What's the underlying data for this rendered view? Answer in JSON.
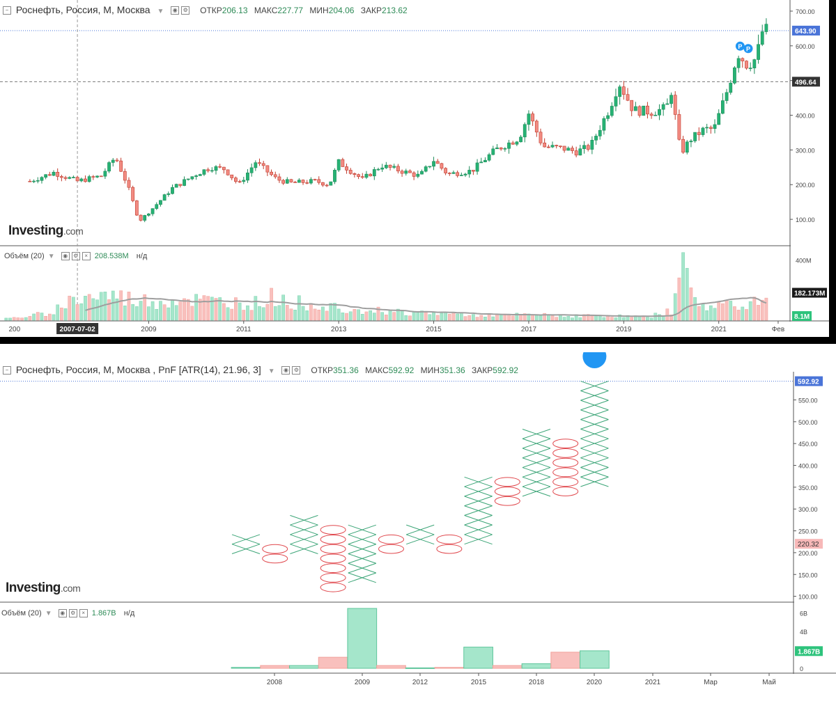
{
  "panel1": {
    "title": "Роснефть, Россия, М, Москва",
    "ohlc": {
      "open_label": "ОТКР",
      "open": "206.13",
      "high_label": "МАКС",
      "high": "227.77",
      "low_label": "МИН",
      "low": "204.06",
      "close_label": "ЗАКР",
      "close": "213.62"
    },
    "volume_label": "Объём (20)",
    "volume_value": "208.538M",
    "volume_na": "н/д",
    "crosshair_date": "2007-07-02",
    "axis_partial_left": "200",
    "price_axis": [
      "700.00",
      "600.00",
      "500.00",
      "400.00",
      "300.00",
      "200.00",
      "100.00"
    ],
    "price_ticks": [
      700,
      600,
      500,
      400,
      300,
      200,
      100
    ],
    "current_price_label": "643.90",
    "crosshair_price_label": "496.64",
    "volume_axis_label": "400M",
    "volume_ma_label": "182.173M",
    "volume_current_label": "8.1M",
    "x_axis": [
      "2009",
      "2011",
      "2013",
      "2015",
      "2017",
      "2019",
      "2021",
      "Фев"
    ],
    "x_axis_years": [
      2009,
      2011,
      2013,
      2015,
      2017,
      2019,
      2021,
      2022.25
    ],
    "marker": "P",
    "logo": "Investing",
    "logo_suffix": ".com"
  },
  "panel2": {
    "title": "Роснефть, Россия, М, Москва , PnF [ATR(14), 21.96, 3]",
    "ohlc": {
      "open_label": "ОТКР",
      "open": "351.36",
      "high_label": "МАКС",
      "high": "592.92",
      "low_label": "МИН",
      "low": "351.36",
      "close_label": "ЗАКР",
      "close": "592.92"
    },
    "volume_label": "Объём (20)",
    "volume_value": "1.867B",
    "volume_na": "н/д",
    "price_axis": [
      "550.00",
      "500.00",
      "450.00",
      "400.00",
      "350.00",
      "300.00",
      "250.00",
      "200.00",
      "150.00",
      "100.00"
    ],
    "price_ticks": [
      550,
      500,
      450,
      400,
      350,
      300,
      250,
      200,
      150,
      100
    ],
    "current_price_label": "592.92",
    "marker_price_label": "220.32",
    "volume_axis": [
      "6B",
      "4B",
      "2B",
      "0"
    ],
    "volume_ticks": [
      6,
      4,
      2,
      0
    ],
    "volume_current_label": "1.867B",
    "x_axis": [
      "2008",
      "2009",
      "2012",
      "2015",
      "2018",
      "2020",
      "2021",
      "Мар",
      "Май"
    ],
    "logo": "Investing",
    "logo_suffix": ".com"
  },
  "colors": {
    "up": "#26a69a",
    "down": "#ef5350",
    "up_vol": "#a5e6cb",
    "down_vol": "#f9c0bd",
    "label_blue": "#4a74d8",
    "label_dark": "#333333",
    "label_green": "#2ec37c",
    "label_red": "#f7b8b8",
    "ma": "#9e9e9e"
  },
  "chart_data": [
    {
      "type": "candlestick",
      "title": "Роснефть, Россия, М, Москва",
      "interval": "monthly",
      "ylim": [
        30,
        720
      ],
      "x_range": [
        2005.9,
        2022.5
      ],
      "price_points": [
        [
          2006.5,
          210
        ],
        [
          2007.0,
          235
        ],
        [
          2007.5,
          210
        ],
        [
          2008.0,
          225
        ],
        [
          2008.3,
          280
        ],
        [
          2008.55,
          200
        ],
        [
          2008.8,
          95
        ],
        [
          2009.0,
          120
        ],
        [
          2009.5,
          190
        ],
        [
          2010.0,
          230
        ],
        [
          2010.3,
          250
        ],
        [
          2010.6,
          245
        ],
        [
          2010.9,
          200
        ],
        [
          2011.25,
          265
        ],
        [
          2011.7,
          215
        ],
        [
          2012.0,
          205
        ],
        [
          2012.5,
          210
        ],
        [
          2012.8,
          200
        ],
        [
          2013.0,
          265
        ],
        [
          2013.5,
          215
        ],
        [
          2013.9,
          255
        ],
        [
          2014.3,
          240
        ],
        [
          2014.7,
          225
        ],
        [
          2015.0,
          270
        ],
        [
          2015.3,
          230
        ],
        [
          2015.8,
          240
        ],
        [
          2016.3,
          300
        ],
        [
          2016.8,
          335
        ],
        [
          2017.0,
          405
        ],
        [
          2017.3,
          310
        ],
        [
          2017.7,
          305
        ],
        [
          2018.0,
          295
        ],
        [
          2018.3,
          310
        ],
        [
          2018.7,
          420
        ],
        [
          2018.9,
          495
        ],
        [
          2019.2,
          415
        ],
        [
          2019.6,
          410
        ],
        [
          2019.9,
          420
        ],
        [
          2020.0,
          470
        ],
        [
          2020.2,
          290
        ],
        [
          2020.4,
          330
        ],
        [
          2020.7,
          360
        ],
        [
          2020.9,
          360
        ],
        [
          2021.2,
          480
        ],
        [
          2021.4,
          580
        ],
        [
          2021.6,
          545
        ],
        [
          2021.8,
          565
        ],
        [
          2021.9,
          640
        ],
        [
          2022.0,
          643.9
        ]
      ],
      "last_price": 643.9,
      "crosshair_price": 496.64,
      "crosshair_date": "2007-07-02",
      "volume": {
        "label": "Объём (20)",
        "ma_period": 20,
        "max_visible_M": 480,
        "ma_last_M": 182.173,
        "current_M": 8.1,
        "points_M": [
          [
            2006.0,
            10
          ],
          [
            2006.5,
            25
          ],
          [
            2007.0,
            60
          ],
          [
            2007.3,
            120
          ],
          [
            2007.7,
            150
          ],
          [
            2008.2,
            160
          ],
          [
            2008.7,
            130
          ],
          [
            2009.2,
            120
          ],
          [
            2009.7,
            140
          ],
          [
            2010.3,
            120
          ],
          [
            2010.8,
            115
          ],
          [
            2011.3,
            110
          ],
          [
            2011.6,
            150
          ],
          [
            2012.0,
            120
          ],
          [
            2012.5,
            100
          ],
          [
            2013.0,
            90
          ],
          [
            2013.5,
            70
          ],
          [
            2014.0,
            60
          ],
          [
            2014.5,
            50
          ],
          [
            2015.0,
            45
          ],
          [
            2015.5,
            40
          ],
          [
            2016.0,
            35
          ],
          [
            2016.5,
            30
          ],
          [
            2017.0,
            35
          ],
          [
            2017.5,
            30
          ],
          [
            2018.0,
            28
          ],
          [
            2018.5,
            30
          ],
          [
            2019.0,
            25
          ],
          [
            2019.5,
            20
          ],
          [
            2020.0,
            60
          ],
          [
            2020.2,
            470
          ],
          [
            2020.4,
            160
          ],
          [
            2020.8,
            80
          ],
          [
            2021.2,
            110
          ],
          [
            2021.6,
            120
          ],
          [
            2022.0,
            130
          ]
        ]
      }
    },
    {
      "type": "point-and-figure",
      "title": "Роснефть, Россия, М, Москва , PnF [ATR(14), 21.96, 3]",
      "box_size": 21.96,
      "reversal": 3,
      "ylim": [
        85,
        605
      ],
      "columns": [
        {
          "kind": "X",
          "low": 197.5,
          "high": 241.4
        },
        {
          "kind": "O",
          "low": 175.5,
          "high": 219.5
        },
        {
          "kind": "X",
          "low": 197.5,
          "high": 285.4
        },
        {
          "kind": "O",
          "low": 109.6,
          "high": 263.4
        },
        {
          "kind": "X",
          "low": 131.6,
          "high": 263.4
        },
        {
          "kind": "O",
          "low": 197.5,
          "high": 241.4
        },
        {
          "kind": "X",
          "low": 219.5,
          "high": 263.4
        },
        {
          "kind": "O",
          "low": 197.5,
          "high": 241.4
        },
        {
          "kind": "X",
          "low": 219.5,
          "high": 373.2
        },
        {
          "kind": "O",
          "low": 307.3,
          "high": 373.2
        },
        {
          "kind": "X",
          "low": 329.3,
          "high": 483.0
        },
        {
          "kind": "O",
          "low": 329.3,
          "high": 461.0
        },
        {
          "kind": "X",
          "low": 351.36,
          "high": 592.92
        }
      ],
      "last_price": 592.92,
      "marker_price": 220.32,
      "volume": {
        "label": "Объём (20)",
        "unit": "B",
        "ylim": [
          -0.3,
          6.5
        ],
        "bars_B": [
          0.1,
          0.3,
          0.3,
          1.2,
          6.5,
          0.3,
          0.05,
          0.1,
          2.3,
          0.3,
          0.5,
          1.75,
          1.9
        ],
        "current_B": 1.867
      }
    }
  ]
}
